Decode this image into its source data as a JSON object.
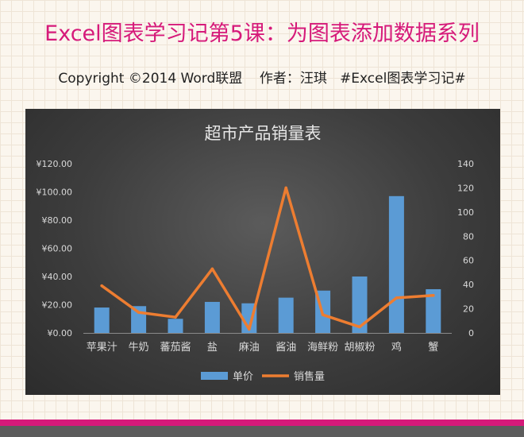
{
  "page": {
    "title": "Excel图表学习记第5课：为图表添加数据系列",
    "subtitle": "Copyright ©2014 Word联盟    作者：汪琪   #Excel图表学习记#"
  },
  "colors": {
    "title": "#d61a7a",
    "bar": "#5b9bd5",
    "line": "#ed7d31",
    "chart_bg": "#404040",
    "axis_text": "#d9d9d9"
  },
  "chart_data": {
    "type": "bar",
    "title": "超市产品销量表",
    "categories": [
      "苹果汁",
      "牛奶",
      "蕃茄酱",
      "盐",
      "麻油",
      "酱油",
      "海鲜粉",
      "胡椒粉",
      "鸡",
      "蟹"
    ],
    "series": [
      {
        "name": "单价",
        "type": "bar",
        "axis": "left",
        "values": [
          18,
          19,
          10,
          22,
          21,
          25,
          30,
          40,
          97,
          31
        ]
      },
      {
        "name": "销售量",
        "type": "line",
        "axis": "right",
        "values": [
          39,
          17,
          13,
          53,
          3,
          120,
          15,
          5,
          29,
          31
        ]
      }
    ],
    "y_left": {
      "lim": [
        0,
        120
      ],
      "ticks": [
        0,
        20,
        40,
        60,
        80,
        100,
        120
      ],
      "tick_labels": [
        "¥0.00",
        "¥20.00",
        "¥40.00",
        "¥60.00",
        "¥80.00",
        "¥100.00",
        "¥120.00"
      ]
    },
    "y_right": {
      "lim": [
        0,
        140
      ],
      "ticks": [
        0,
        20,
        40,
        60,
        80,
        100,
        120,
        140
      ],
      "tick_labels": [
        "0",
        "20",
        "40",
        "60",
        "80",
        "100",
        "120",
        "140"
      ]
    },
    "xlabel": "",
    "ylabel": "",
    "grid": false,
    "legend": "bottom"
  }
}
